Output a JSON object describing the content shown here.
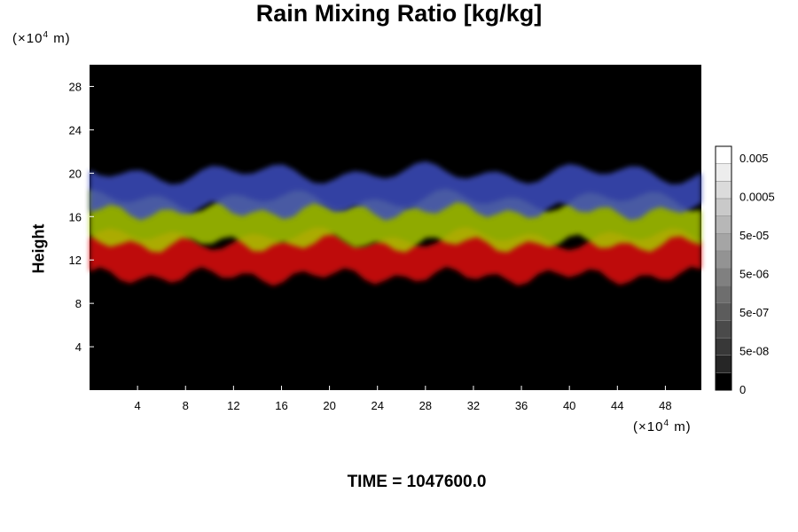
{
  "chart_data": {
    "type": "heatmap",
    "title": "Rain Mixing Ratio [kg/kg]",
    "ylabel": "Height",
    "xlabel": "",
    "x_unit": "(×10",
    "y_unit": "(×10",
    "unit_exponent": "4",
    "unit_suffix": "m)",
    "footer": "TIME = 1047600.0",
    "xlim": [
      0,
      51
    ],
    "ylim": [
      0,
      30
    ],
    "x_ticks": [
      4,
      8,
      12,
      16,
      20,
      24,
      28,
      32,
      36,
      40,
      44,
      48
    ],
    "y_ticks": [
      4,
      8,
      12,
      16,
      20,
      24,
      28
    ],
    "colorbar": {
      "labels": [
        "0.005",
        "0.0005",
        "5e-05",
        "5e-06",
        "5e-07",
        "5e-08",
        "0"
      ],
      "levels": 14,
      "colors": {
        "low": "#000000",
        "high": "#ffffff"
      }
    },
    "layers": [
      {
        "name": "red",
        "color": "#e01010",
        "y_range": [
          10.5,
          14
        ]
      },
      {
        "name": "yellow-green",
        "color": "#a8c800",
        "y_range": [
          13.5,
          17.5
        ]
      },
      {
        "name": "blue",
        "color": "#3e4ec0",
        "y_range": [
          16.5,
          20
        ]
      }
    ],
    "background": "#000000"
  }
}
